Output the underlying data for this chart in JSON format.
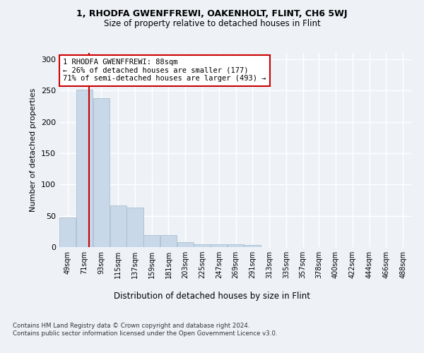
{
  "title1": "1, RHODFA GWENFFREWI, OAKENHOLT, FLINT, CH6 5WJ",
  "title2": "Size of property relative to detached houses in Flint",
  "xlabel": "Distribution of detached houses by size in Flint",
  "ylabel": "Number of detached properties",
  "bar_color": "#c8d8e8",
  "bar_edge_color": "#a0b8cc",
  "property_line_x": 88,
  "categories": [
    "49sqm",
    "71sqm",
    "93sqm",
    "115sqm",
    "137sqm",
    "159sqm",
    "181sqm",
    "203sqm",
    "225sqm",
    "247sqm",
    "269sqm",
    "291sqm",
    "313sqm",
    "335sqm",
    "357sqm",
    "378sqm",
    "400sqm",
    "422sqm",
    "444sqm",
    "466sqm",
    "488sqm"
  ],
  "bin_edges": [
    49,
    71,
    93,
    115,
    137,
    159,
    181,
    203,
    225,
    247,
    269,
    291,
    313,
    335,
    357,
    378,
    400,
    422,
    444,
    466,
    488,
    510
  ],
  "values": [
    47,
    251,
    238,
    66,
    63,
    19,
    19,
    8,
    5,
    5,
    4,
    3,
    0,
    0,
    0,
    0,
    0,
    0,
    0,
    0,
    0
  ],
  "ylim": [
    0,
    310
  ],
  "yticks": [
    0,
    50,
    100,
    150,
    200,
    250,
    300
  ],
  "annotation_text": "1 RHODFA GWENFFREWI: 88sqm\n← 26% of detached houses are smaller (177)\n71% of semi-detached houses are larger (493) →",
  "annotation_box_color": "#ffffff",
  "annotation_box_edge_color": "#cc0000",
  "red_line_color": "#cc0000",
  "footer": "Contains HM Land Registry data © Crown copyright and database right 2024.\nContains public sector information licensed under the Open Government Licence v3.0.",
  "background_color": "#eef2f7",
  "grid_color": "#ffffff"
}
